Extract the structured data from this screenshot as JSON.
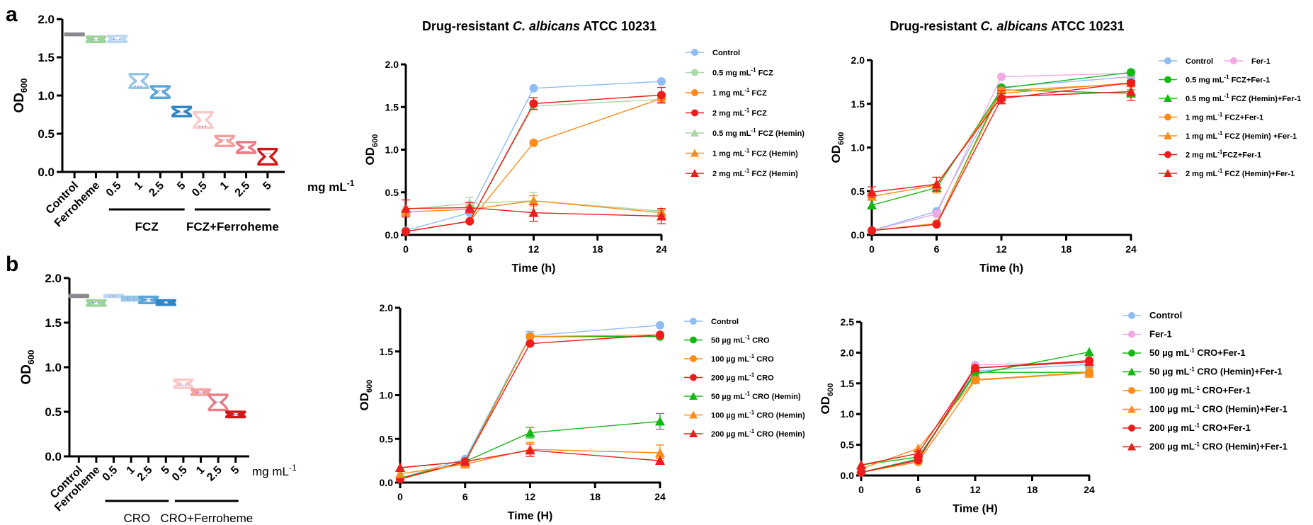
{
  "panel_labels": [
    "a",
    "b"
  ],
  "chart_data": [
    {
      "id": "a-violin",
      "panel": "a",
      "type": "violin",
      "title": "",
      "ylabel": "OD600",
      "ylabel_main": "OD",
      "ylabel_sub": "600",
      "ylim": [
        0,
        2.0
      ],
      "yticks": [
        "0.0",
        "0.5",
        "1.0",
        "1.5",
        "2.0"
      ],
      "categories": [
        "Control",
        "Ferroheme",
        "0.5",
        "1",
        "2.5",
        "5",
        "0.5",
        "1",
        "2.5",
        "5"
      ],
      "unit_label": "mg mL",
      "unit_sup": "-1",
      "groups": [
        {
          "label": "FCZ",
          "from": 2,
          "to": 5
        },
        {
          "label": "FCZ+Ferroheme",
          "from": 6,
          "to": 9
        }
      ],
      "medians": [
        1.8,
        1.73,
        1.73,
        1.12,
        1.07,
        0.78,
        0.6,
        0.42,
        0.27,
        0.24
      ],
      "mins": [
        1.79,
        1.7,
        1.7,
        1.1,
        0.97,
        0.73,
        0.58,
        0.34,
        0.25,
        0.1
      ],
      "maxs": [
        1.81,
        1.77,
        1.78,
        1.28,
        1.12,
        0.85,
        0.78,
        0.47,
        0.39,
        0.3
      ],
      "colors": [
        "#8c8c8c",
        "#9dd49a",
        "#bcd8f0",
        "#96c6e6",
        "#5aa6d8",
        "#2e86c8",
        "#fbc8c8",
        "#f4a0a0",
        "#ea7c86",
        "#d01818"
      ]
    },
    {
      "id": "a-line-fcz",
      "panel": "a",
      "type": "line",
      "title_pre": "Drug-resistant ",
      "title_italic": "C. albicans",
      "title_post": " ATCC 10231",
      "xlabel": "Time (h)",
      "ylabel_main": "OD",
      "ylabel_sub": "600",
      "x": [
        0,
        6,
        12,
        24
      ],
      "xticks": [
        "0",
        "6",
        "12",
        "18",
        "24"
      ],
      "xlim": [
        0,
        24
      ],
      "ylim": [
        0,
        2.0
      ],
      "yticks": [
        "0.0",
        "0.5",
        "1.0",
        "1.5",
        "2.0"
      ],
      "legend_position": "right",
      "series": [
        {
          "name": "Control",
          "pre": "Control",
          "sup": "",
          "post": "",
          "marker": "circle",
          "color": "#8fbcf2",
          "values": [
            0.05,
            0.26,
            1.72,
            1.8
          ],
          "err": [
            0,
            0,
            0,
            0
          ]
        },
        {
          "name": "0.5 mg mL-1 FCZ",
          "pre": "0.5 mg mL",
          "sup": "-1",
          "post": " FCZ",
          "marker": "circle",
          "color": "#a8d8a8",
          "values": [
            0.04,
            0.16,
            1.51,
            1.59
          ],
          "err": [
            0,
            0,
            0.04,
            0.05
          ]
        },
        {
          "name": "1 mg mL-1 FCZ",
          "pre": "1 mg mL",
          "sup": "-1",
          "post": " FCZ",
          "marker": "circle",
          "color": "#ff8c1a",
          "values": [
            0.04,
            0.16,
            1.08,
            1.6
          ],
          "err": [
            0,
            0,
            0,
            0.05
          ]
        },
        {
          "name": "2 mg mL-1 FCZ",
          "pre": "2 mg mL",
          "sup": "-1",
          "post": " FCZ",
          "marker": "circle",
          "color": "#ee1c1c",
          "values": [
            0.04,
            0.16,
            1.54,
            1.64
          ],
          "err": [
            0,
            0,
            0.07,
            0.09
          ]
        },
        {
          "name": "0.5 mg mL-1 FCZ (Hemin)",
          "pre": "0.5 mg mL",
          "sup": "-1",
          "post": " FCZ (Hemin)",
          "marker": "triangle",
          "color": "#a8d8a8",
          "values": [
            0.3,
            0.37,
            0.4,
            0.28
          ],
          "err": [
            0.03,
            0.07,
            0.1,
            0.03
          ]
        },
        {
          "name": "1 mg mL-1 FCZ (Hemin)",
          "pre": "1 mg mL",
          "sup": "-1",
          "post": " FCZ (Hemin)",
          "marker": "triangle",
          "color": "#ff8c1a",
          "values": [
            0.27,
            0.3,
            0.4,
            0.26
          ],
          "err": [
            0.03,
            0.04,
            0.06,
            0.03
          ]
        },
        {
          "name": "2 mg mL-1 FCZ (Hemin)",
          "pre": "2 mg mL",
          "sup": "-1",
          "post": " FCZ (Hemin)",
          "marker": "triangle",
          "color": "#ee1c1c",
          "values": [
            0.31,
            0.32,
            0.26,
            0.22
          ],
          "err": [
            0.1,
            0.06,
            0.1,
            0.09
          ]
        }
      ]
    },
    {
      "id": "a-line-fcz-fer1",
      "panel": "a",
      "type": "line",
      "title_pre": "Drug-resistant ",
      "title_italic": "C. albicans",
      "title_post": " ATCC 10231",
      "xlabel": "Time (h)",
      "ylabel_main": "OD",
      "ylabel_sub": "600",
      "x": [
        0,
        6,
        12,
        24
      ],
      "xticks": [
        "0",
        "6",
        "12",
        "18",
        "24"
      ],
      "xlim": [
        0,
        24
      ],
      "ylim": [
        0,
        2.0
      ],
      "yticks": [
        "0.0",
        "0.5",
        "1.0",
        "1.5",
        "2.0"
      ],
      "legend_position": "right",
      "series": [
        {
          "name": "Control",
          "pre": "Control",
          "sup": "",
          "post": "",
          "marker": "circle",
          "color": "#8fbcf2",
          "values": [
            0.05,
            0.27,
            1.69,
            1.81
          ],
          "err": [
            0,
            0,
            0,
            0
          ]
        },
        {
          "name": "Fer-1",
          "pre": "Fer-1",
          "sup": "",
          "post": "",
          "marker": "circle",
          "color": "#f2a8e4",
          "values": [
            0.05,
            0.24,
            1.81,
            1.85
          ],
          "err": [
            0,
            0,
            0,
            0
          ]
        },
        {
          "name": "0.5 mg mL-1 FCZ+Fer-1",
          "pre": "0.5 mg mL",
          "sup": "-1",
          "post": " FCZ+Fer-1",
          "marker": "circle",
          "color": "#14b814",
          "values": [
            0.05,
            0.13,
            1.68,
            1.86
          ],
          "err": [
            0,
            0,
            0,
            0
          ]
        },
        {
          "name": "0.5 mg mL-1 FCZ (Hemin)+Fer-1",
          "pre": "0.5 mg mL",
          "sup": "-1",
          "post": " FCZ (Hemin)+Fer-1",
          "marker": "triangle",
          "color": "#14b814",
          "values": [
            0.34,
            0.54,
            1.66,
            1.62
          ],
          "err": [
            0,
            0.04,
            0.04,
            0.04
          ]
        },
        {
          "name": "1 mg mL-1 FCZ+Fer-1",
          "pre": "1 mg mL",
          "sup": "-1",
          "post": " FCZ+Fer-1",
          "marker": "circle",
          "color": "#ff8c1a",
          "values": [
            0.05,
            0.13,
            1.65,
            1.73
          ],
          "err": [
            0,
            0,
            0.03,
            0.03
          ]
        },
        {
          "name": "1 mg mL-1 FCZ (Hemin) +Fer-1",
          "pre": "1 mg mL",
          "sup": "-1",
          "post": " FCZ (Hemin) +Fer-1",
          "marker": "triangle",
          "color": "#ff8c1a",
          "values": [
            0.44,
            0.57,
            1.62,
            1.74
          ],
          "err": [
            0.03,
            0.09,
            0.05,
            0.03
          ]
        },
        {
          "name": "2 mg mL-1FCZ+Fer-1",
          "pre": "2 mg mL",
          "sup": "-1",
          "post": "FCZ+Fer-1",
          "marker": "circle",
          "color": "#ee1c1c",
          "values": [
            0.05,
            0.12,
            1.56,
            1.74
          ],
          "err": [
            0,
            0,
            0.06,
            0.03
          ]
        },
        {
          "name": "2 mg mL-1 FCZ (Hemin)+Fer-1",
          "pre": "2 mg mL",
          "sup": "-1",
          "post": " FCZ (Hemin)+Fer-1",
          "marker": "triangle",
          "color": "#ee1c1c",
          "values": [
            0.49,
            0.58,
            1.58,
            1.64
          ],
          "err": [
            0.06,
            0.08,
            0.07,
            0.1
          ]
        }
      ]
    },
    {
      "id": "b-violin",
      "panel": "b",
      "type": "violin",
      "title": "",
      "ylabel": "OD600",
      "ylabel_main": "OD",
      "ylabel_sub": "600",
      "ylim": [
        0,
        2.0
      ],
      "yticks": [
        "0.0",
        "0.5",
        "1.0",
        "1.5",
        "2.0"
      ],
      "categories": [
        "Control",
        "Ferroheme",
        "0.5",
        "1",
        "2.5",
        "5",
        "0.5",
        "1",
        "2.5",
        "5"
      ],
      "unit_label": "mg mL",
      "unit_sup": "-1",
      "groups": [
        {
          "label": "CRO",
          "from": 2,
          "to": 5
        },
        {
          "label": "CRO+Ferroheme",
          "from": 6,
          "to": 9
        }
      ],
      "medians": [
        1.8,
        1.73,
        1.8,
        1.77,
        1.76,
        1.72,
        0.8,
        0.72,
        0.61,
        0.47
      ],
      "mins": [
        1.79,
        1.69,
        1.79,
        1.75,
        1.72,
        1.7,
        0.77,
        0.69,
        0.52,
        0.44
      ],
      "maxs": [
        1.81,
        1.75,
        1.81,
        1.79,
        1.79,
        1.75,
        0.86,
        0.75,
        0.69,
        0.5
      ],
      "colors": [
        "#8c8c8c",
        "#9dd49a",
        "#bcd8f0",
        "#96c6e6",
        "#5aa6d8",
        "#2e86c8",
        "#fbc8c8",
        "#f4a0a0",
        "#ea7c86",
        "#d01818"
      ]
    },
    {
      "id": "b-line-cro",
      "panel": "b",
      "type": "line",
      "xlabel": "Time (H)",
      "ylabel_main": "OD",
      "ylabel_sub": "600",
      "x": [
        0,
        6,
        12,
        24
      ],
      "xticks": [
        "0",
        "6",
        "12",
        "18",
        "24"
      ],
      "xlim": [
        0,
        24
      ],
      "ylim": [
        0,
        2.0
      ],
      "yticks": [
        "0.0",
        "0.5",
        "1.0",
        "1.5",
        "2.0"
      ],
      "legend_position": "right",
      "series": [
        {
          "name": "Control",
          "pre": "Control",
          "sup": "",
          "post": "",
          "marker": "circle",
          "color": "#8fbcf2",
          "values": [
            0.05,
            0.27,
            1.68,
            1.8
          ],
          "err": [
            0,
            0,
            0.05,
            0
          ]
        },
        {
          "name": "50 µg mL-1 CRO",
          "pre": "50 µg mL",
          "sup": "-1",
          "post": " CRO",
          "marker": "circle",
          "color": "#14b814",
          "values": [
            0.05,
            0.24,
            1.67,
            1.67
          ],
          "err": [
            0,
            0,
            0,
            0
          ]
        },
        {
          "name": "100 µg mL-1 CRO",
          "pre": "100 µg mL",
          "sup": "-1",
          "post": " CRO",
          "marker": "circle",
          "color": "#ff8c1a",
          "values": [
            0.04,
            0.23,
            1.67,
            1.69
          ],
          "err": [
            0,
            0,
            0,
            0
          ]
        },
        {
          "name": "200 µg mL-1 CRO",
          "pre": "200 µg mL",
          "sup": "-1",
          "post": " CRO",
          "marker": "circle",
          "color": "#ee1c1c",
          "values": [
            0.04,
            0.24,
            1.59,
            1.69
          ],
          "err": [
            0,
            0,
            0,
            0
          ]
        },
        {
          "name": "50 µg mL-1 CRO (Hemin)",
          "pre": "50 µg mL",
          "sup": "-1",
          "post": " CRO (Hemin)",
          "marker": "triangle",
          "color": "#14b814",
          "values": [
            0.17,
            0.24,
            0.57,
            0.7
          ],
          "err": [
            0,
            0,
            0.06,
            0.09
          ]
        },
        {
          "name": "100 µg mL-1 CRO (Hemin)",
          "pre": "100 µg mL",
          "sup": "-1",
          "post": " CRO (Hemin)",
          "marker": "triangle",
          "color": "#ff8c1a",
          "values": [
            0.1,
            0.21,
            0.38,
            0.34
          ],
          "err": [
            0,
            0.02,
            0.08,
            0.09
          ]
        },
        {
          "name": "200 µg mL-1 CRO (Hemin)",
          "pre": "200 µg mL",
          "sup": "-1",
          "post": " CRO (Hemin)",
          "marker": "triangle",
          "color": "#ee1c1c",
          "values": [
            0.17,
            0.24,
            0.37,
            0.25
          ],
          "err": [
            0,
            0,
            0.07,
            0.03
          ]
        }
      ]
    },
    {
      "id": "b-line-cro-fer1",
      "panel": "b",
      "type": "line",
      "xlabel": "Time (H)",
      "ylabel_main": "OD",
      "ylabel_sub": "600",
      "x": [
        0,
        6,
        12,
        24
      ],
      "xticks": [
        "0",
        "6",
        "12",
        "18",
        "24"
      ],
      "xlim": [
        0,
        24
      ],
      "ylim": [
        0,
        2.5
      ],
      "yticks": [
        "0.0",
        "0.5",
        "1.0",
        "1.5",
        "2.0",
        "2.5"
      ],
      "legend_position": "right",
      "series": [
        {
          "name": "Control",
          "pre": "Control",
          "sup": "",
          "post": "",
          "marker": "circle",
          "color": "#8fbcf2",
          "values": [
            0.05,
            0.27,
            1.7,
            1.81
          ],
          "err": [
            0,
            0,
            0,
            0
          ]
        },
        {
          "name": "Fer-1",
          "pre": "Fer-1",
          "sup": "",
          "post": "",
          "marker": "circle",
          "color": "#f2a8e4",
          "values": [
            0.05,
            0.24,
            1.8,
            1.84
          ],
          "err": [
            0,
            0,
            0,
            0
          ]
        },
        {
          "name": "50 µg mL-1 CRO+Fer-1",
          "pre": "50 µg mL",
          "sup": "-1",
          "post": " CRO+Fer-1",
          "marker": "circle",
          "color": "#14b814",
          "values": [
            0.05,
            0.27,
            1.68,
            1.68
          ],
          "err": [
            0,
            0,
            0,
            0
          ]
        },
        {
          "name": "50 µg mL-1 CRO (Hemin)+Fer-1",
          "pre": "50 µg mL",
          "sup": "-1",
          "post": " CRO (Hemin)+Fer-1",
          "marker": "triangle",
          "color": "#14b814",
          "values": [
            0.17,
            0.3,
            1.65,
            2.01
          ],
          "err": [
            0,
            0,
            0,
            0
          ]
        },
        {
          "name": "100 µg mL-1 CRO+Fer-1",
          "pre": "100 µg mL",
          "sup": "-1",
          "post": " CRO+Fer-1",
          "marker": "circle",
          "color": "#ff8c1a",
          "values": [
            0.05,
            0.22,
            1.55,
            1.67
          ],
          "err": [
            0,
            0,
            0.03,
            0.07
          ]
        },
        {
          "name": "100 µg mL-1 CRO (Hemin)+Fer-1",
          "pre": "100 µg mL",
          "sup": "-1",
          "post": " CRO (Hemin)+Fer-1",
          "marker": "triangle",
          "color": "#ff8c1a",
          "values": [
            0.11,
            0.44,
            1.56,
            1.68
          ],
          "err": [
            0,
            0,
            0.04,
            0.08
          ]
        },
        {
          "name": "200 µg mL-1 CRO+Fer-1",
          "pre": "200 µg mL",
          "sup": "-1",
          "post": " CRO+Fer-1",
          "marker": "circle",
          "color": "#ee1c1c",
          "values": [
            0.05,
            0.25,
            1.75,
            1.87
          ],
          "err": [
            0,
            0,
            0,
            0
          ]
        },
        {
          "name": "200 µg mL-1 CRO (Hemin)+Fer-1",
          "pre": "200 µg mL",
          "sup": "-1",
          "post": " CRO (Hemin)+Fer-1",
          "marker": "triangle",
          "color": "#ee1c1c",
          "values": [
            0.17,
            0.36,
            1.75,
            1.85
          ],
          "err": [
            0,
            0.03,
            0,
            0
          ]
        }
      ]
    }
  ]
}
